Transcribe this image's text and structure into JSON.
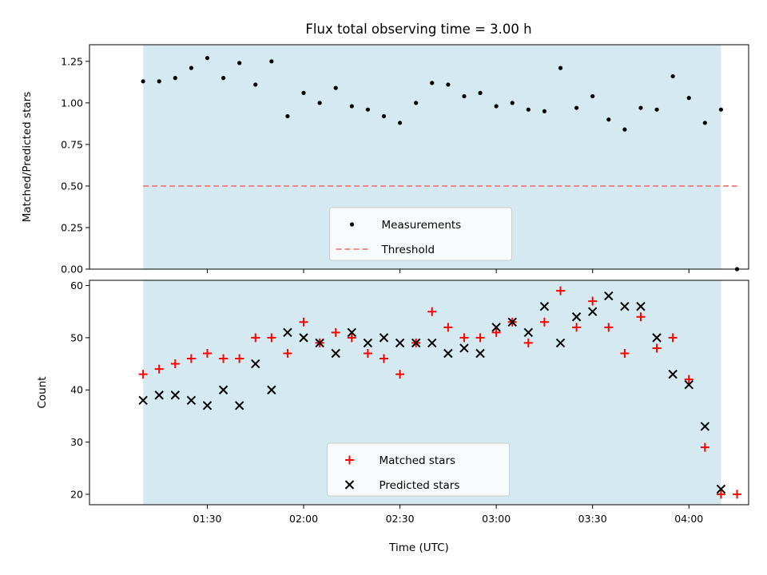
{
  "title": "Flux total observing time = 3.00 h",
  "colors": {
    "shade": "#d4eaf0",
    "measurement": "#000000",
    "threshold": "#f08080",
    "matched": "#ff0000",
    "predicted": "#000000"
  },
  "chart_data": [
    {
      "type": "scatter",
      "ylabel": "Matched/Predicted stars",
      "ylim": [
        0,
        1.35
      ],
      "yticks": [
        "0.00",
        "0.25",
        "0.50",
        "0.75",
        "1.00",
        "1.25"
      ],
      "shaded_span_minutes": [
        10,
        190
      ],
      "legend": {
        "placement": "lower-center",
        "entries": [
          "Measurements",
          "Threshold"
        ]
      },
      "threshold": {
        "name": "Threshold",
        "value": 0.5,
        "x_range_minutes": [
          10,
          195
        ]
      },
      "series": [
        {
          "name": "Measurements",
          "x_minutes": [
            10,
            15,
            20,
            25,
            30,
            35,
            40,
            45,
            50,
            55,
            60,
            65,
            70,
            75,
            80,
            85,
            90,
            95,
            100,
            105,
            110,
            115,
            120,
            125,
            130,
            135,
            140,
            145,
            150,
            155,
            160,
            165,
            170,
            175,
            180,
            185,
            190,
            195
          ],
          "values": [
            1.13,
            1.13,
            1.15,
            1.21,
            1.27,
            1.15,
            1.24,
            1.11,
            1.25,
            0.92,
            1.06,
            1.0,
            1.09,
            0.98,
            0.96,
            0.92,
            0.88,
            1.0,
            1.12,
            1.11,
            1.04,
            1.06,
            0.98,
            1.0,
            0.96,
            0.95,
            1.21,
            0.97,
            1.04,
            0.9,
            0.84,
            0.97,
            0.96,
            1.16,
            1.03,
            0.88,
            0.96,
            0.0
          ]
        }
      ]
    },
    {
      "type": "scatter",
      "xlabel": "Time (UTC)",
      "ylabel": "Count",
      "ylim": [
        18,
        61
      ],
      "yticks": [
        "20",
        "30",
        "40",
        "50",
        "60"
      ],
      "xticks": [
        "01:30",
        "02:00",
        "02:30",
        "03:00",
        "03:30",
        "04:00"
      ],
      "xticks_minutes": [
        30,
        60,
        90,
        120,
        150,
        180
      ],
      "x_axis_origin": "01:00 UTC",
      "shaded_span_minutes": [
        10,
        190
      ],
      "legend": {
        "placement": "lower-center",
        "entries": [
          "Matched stars",
          "Predicted stars"
        ]
      },
      "series": [
        {
          "name": "Matched stars",
          "x_minutes": [
            10,
            15,
            20,
            25,
            30,
            35,
            40,
            45,
            50,
            55,
            60,
            65,
            70,
            75,
            80,
            85,
            90,
            95,
            100,
            105,
            110,
            115,
            120,
            125,
            130,
            135,
            140,
            145,
            150,
            155,
            160,
            165,
            170,
            175,
            180,
            185,
            190,
            195
          ],
          "values": [
            43,
            44,
            45,
            46,
            47,
            46,
            46,
            50,
            50,
            47,
            53,
            49,
            51,
            50,
            47,
            46,
            43,
            49,
            55,
            52,
            50,
            50,
            51,
            53,
            49,
            53,
            59,
            52,
            57,
            52,
            47,
            54,
            48,
            50,
            42,
            29,
            20,
            20
          ]
        },
        {
          "name": "Predicted stars",
          "x_minutes": [
            10,
            15,
            20,
            25,
            30,
            35,
            40,
            45,
            50,
            55,
            60,
            65,
            70,
            75,
            80,
            85,
            90,
            95,
            100,
            105,
            110,
            115,
            120,
            125,
            130,
            135,
            140,
            145,
            150,
            155,
            160,
            165,
            170,
            175,
            180,
            185,
            190
          ],
          "values": [
            38,
            39,
            39,
            38,
            37,
            40,
            37,
            45,
            40,
            51,
            50,
            49,
            47,
            51,
            49,
            50,
            49,
            49,
            49,
            47,
            48,
            47,
            52,
            53,
            51,
            56,
            49,
            54,
            55,
            58,
            56,
            56,
            50,
            43,
            41,
            33,
            21
          ]
        }
      ]
    }
  ]
}
